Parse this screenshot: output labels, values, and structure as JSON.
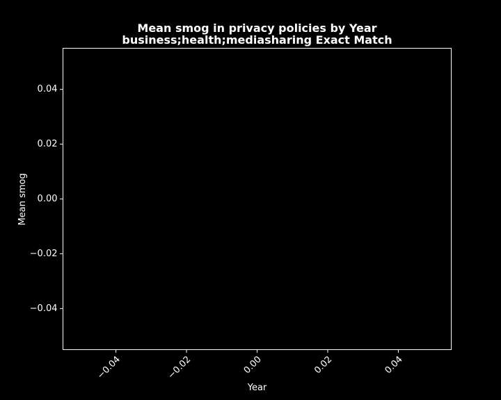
{
  "chart_data": {
    "type": "line",
    "title": "Mean smog in privacy policies by Year",
    "subtitle": "business;health;mediasharing Exact Match",
    "xlabel": "Year",
    "ylabel": "Mean smog",
    "x": [],
    "series": [
      {
        "values": []
      }
    ],
    "xlim": [
      -0.055,
      0.055
    ],
    "ylim": [
      -0.055,
      0.055
    ],
    "x_ticks": [
      -0.04,
      -0.02,
      0.0,
      0.02,
      0.04
    ],
    "x_tick_labels": [
      "−0.04",
      "−0.02",
      "0.00",
      "0.02",
      "0.04"
    ],
    "y_ticks": [
      -0.04,
      -0.02,
      0.0,
      0.02,
      0.04
    ],
    "y_tick_labels": [
      "−0.04",
      "−0.02",
      "0.00",
      "0.02",
      "0.04"
    ],
    "grid": false,
    "x_tick_rotation_deg": 45,
    "colors": {
      "background": "#000000",
      "foreground": "#ffffff"
    }
  }
}
